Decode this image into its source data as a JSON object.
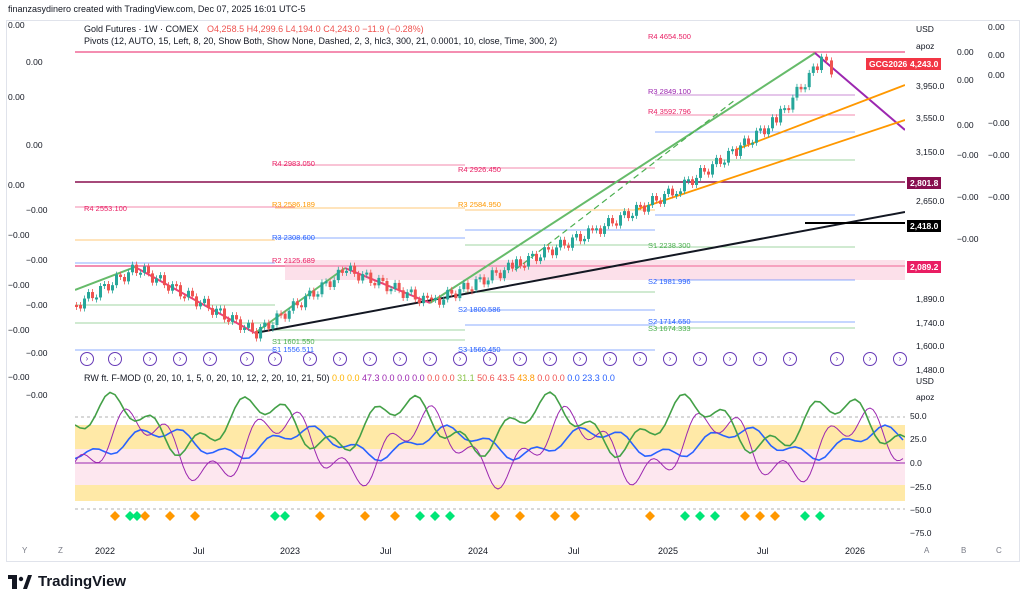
{
  "header": {
    "created": "finanzasydinero created with TradingView.com, Dec 07, 2025 16:01 UTC-5"
  },
  "symbol": {
    "name": "Gold Futures · 1W · COMEX",
    "open": "O4,258.5",
    "high": "H4,299.6",
    "low": "L4,194.0",
    "close": "C4,243.0",
    "change": "−11.9 (−0.28%)"
  },
  "indicators": {
    "pivots": "Pivots (12, AUTO, 15, Left, 8, 20, Show Both, Show None, Dashed, 2, 3, hlc3, 300, 21, 0.0001, 10, close, Time, 300, 2)",
    "oscillator_name": "RW ft. F-MOD (0, 20, 10, 1, 5, 0, 20, 10, 12, 2, 20, 10, 21, 50)",
    "oscillator_values": [
      "0.0",
      "0.0",
      "47.3",
      "0.0",
      "0.0",
      "0.0",
      "0.0",
      "0.0",
      "31.1",
      "50.6",
      "43.5",
      "43.8",
      "0.0",
      "0.0",
      "0.0",
      "23.3",
      "0.0"
    ]
  },
  "price_axis": {
    "currency": "USD",
    "sub": "apoz",
    "labels": [
      "3,950.0",
      "3,550.0",
      "3,150.0",
      "2,650.0",
      "2,418.0",
      "1,890.0",
      "1,740.0",
      "1,600.0",
      "1,480.0"
    ],
    "current_tag": "GCG2026",
    "current_price": "4,243.0",
    "tag_2801": "2,801.8",
    "tag_2418": "2,418.0",
    "tag_2089": "2,089.2"
  },
  "osc_axis": {
    "currency": "USD",
    "sub": "apoz",
    "labels": [
      "50.0",
      "25.0",
      "0.0",
      "−25.0",
      "−50.0",
      "−75.0"
    ]
  },
  "left_values": [
    "0.00",
    "0.00",
    "0.00",
    "0.00",
    "0.00",
    "−0.00",
    "−0.00",
    "−0.00",
    "−0.00",
    "−0.00",
    "−0.00",
    "−0.00",
    "−0.00",
    "−0.00"
  ],
  "right_values_a": [
    "0.00",
    "0.00",
    "0.00",
    "0.00",
    "0.00",
    "0.00",
    "−0.00",
    "−0.00",
    "−0.00",
    "−0.00",
    "−0.00",
    "−0.00"
  ],
  "pivot_labels": {
    "r4_top": "4654.500",
    "r3_a": "2849.100",
    "r4_a": "3592.796",
    "r4_b": "2983.050",
    "r4_c": "2926.450",
    "r4_d": "2553.100",
    "r3_b": "2586.189",
    "r3_c": "2584.950",
    "r3_d": "2308.600",
    "p_a": "2125.689",
    "s1_a": "2238.300",
    "s2_a": "1981.996",
    "s2_b": "1800.586",
    "s2_c": "1714.650",
    "s3_a": "1674.333",
    "s3_b": "1560.450",
    "s1_b": "1601.550",
    "s1_c": "1556.511"
  },
  "time_axis": [
    "2022",
    "Jul",
    "2023",
    "Jul",
    "2024",
    "Jul",
    "2025",
    "Jul",
    "2026"
  ],
  "corner_buttons": [
    "Y",
    "Z",
    "A",
    "B",
    "C"
  ],
  "footer": {
    "brand": "TradingView"
  },
  "colors": {
    "up": "#26a69a",
    "down": "#ef5350",
    "trend_green": "#66bb6a",
    "trend_orange": "#ff9800",
    "trend_purple": "#9c27b0",
    "trend_black": "#131722",
    "resistance": "#e91e63",
    "support": "#4caf50",
    "pivot_blue": "#2962ff"
  }
}
